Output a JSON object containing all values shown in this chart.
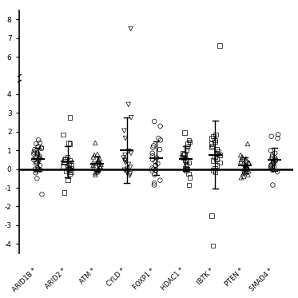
{
  "categories": [
    "ARID1B",
    "ARID2",
    "ATM",
    "CYLD",
    "FOXP1",
    "HDAC1",
    "IBTK",
    "PTEN",
    "SMAD4"
  ],
  "marker_map": {
    "ARID1B": "o",
    "ARID2": "s",
    "ATM": "^",
    "CYLD": "v",
    "FOXP1": "o",
    "HDAC1": "s",
    "IBTK": "s",
    "PTEN": "^",
    "SMAD4": "o"
  },
  "data": {
    "ARID1B": [
      1.55,
      1.4,
      1.35,
      1.2,
      1.15,
      1.1,
      1.05,
      0.95,
      0.9,
      0.85,
      0.8,
      0.75,
      0.7,
      0.65,
      0.6,
      0.55,
      0.5,
      0.45,
      0.4,
      0.35,
      0.3,
      0.2,
      0.05,
      0.0,
      0.0,
      -0.05,
      -0.1,
      -0.2,
      -0.5,
      -1.35
    ],
    "ARID2": [
      2.75,
      1.85,
      1.4,
      1.35,
      0.65,
      0.55,
      0.5,
      0.45,
      0.4,
      0.35,
      0.25,
      0.2,
      0.15,
      0.1,
      0.05,
      0.0,
      -0.05,
      -0.1,
      -0.15,
      -0.25,
      -0.6,
      -1.25
    ],
    "ATM": [
      1.4,
      0.8,
      0.75,
      0.65,
      0.55,
      0.5,
      0.45,
      0.4,
      0.35,
      0.3,
      0.25,
      0.2,
      0.15,
      0.1,
      0.05,
      0.0,
      -0.05,
      -0.1,
      -0.15,
      -0.2,
      -0.3
    ],
    "CYLD": [
      7.5,
      3.45,
      2.75,
      2.05,
      1.65,
      0.95,
      0.85,
      0.75,
      0.6,
      0.5,
      0.45,
      0.35,
      0.25,
      0.1,
      0.0,
      -0.05,
      -0.1,
      -0.15,
      -0.2,
      -0.25,
      -0.35
    ],
    "FOXP1": [
      2.55,
      2.3,
      1.65,
      1.55,
      1.25,
      1.15,
      1.05,
      0.85,
      0.7,
      0.6,
      0.5,
      0.4,
      0.3,
      0.2,
      0.05,
      0.0,
      -0.05,
      -0.1,
      -0.3,
      -0.6,
      -0.75,
      -0.85
    ],
    "HDAC1": [
      1.95,
      1.55,
      1.45,
      1.35,
      1.2,
      1.0,
      0.85,
      0.8,
      0.75,
      0.65,
      0.6,
      0.5,
      0.45,
      0.35,
      0.25,
      0.15,
      0.05,
      0.0,
      -0.05,
      -0.25,
      -0.45,
      -0.85
    ],
    "IBTK": [
      6.6,
      1.85,
      1.75,
      1.65,
      1.55,
      1.45,
      1.35,
      1.25,
      1.15,
      1.05,
      0.95,
      0.85,
      0.75,
      0.65,
      0.55,
      0.45,
      0.35,
      0.2,
      0.05,
      -0.05,
      -0.15,
      -2.5,
      -4.1
    ],
    "PTEN": [
      1.35,
      0.75,
      0.65,
      0.55,
      0.5,
      0.45,
      0.4,
      0.35,
      0.3,
      0.25,
      0.2,
      0.15,
      0.1,
      0.05,
      0.0,
      -0.05,
      -0.1,
      -0.15,
      -0.2,
      -0.3,
      -0.4,
      -0.45
    ],
    "SMAD4": [
      1.85,
      1.75,
      1.65,
      1.0,
      0.85,
      0.75,
      0.65,
      0.6,
      0.55,
      0.5,
      0.45,
      0.4,
      0.35,
      0.3,
      0.25,
      0.2,
      0.15,
      0.1,
      0.05,
      -0.05,
      -0.15,
      -0.85
    ]
  },
  "ylim": [
    -4.8,
    8.8
  ],
  "yticks": [
    -4,
    -3,
    -2,
    -1,
    0,
    1,
    2,
    3,
    4,
    6,
    7,
    8
  ],
  "ytick_labels": [
    "-4",
    "-3",
    "-2",
    "-1",
    "0",
    "1",
    "2",
    "3",
    "4",
    "6",
    "7",
    "8"
  ],
  "background_color": "#ffffff",
  "marker_size": 4,
  "jitter": 0.15
}
